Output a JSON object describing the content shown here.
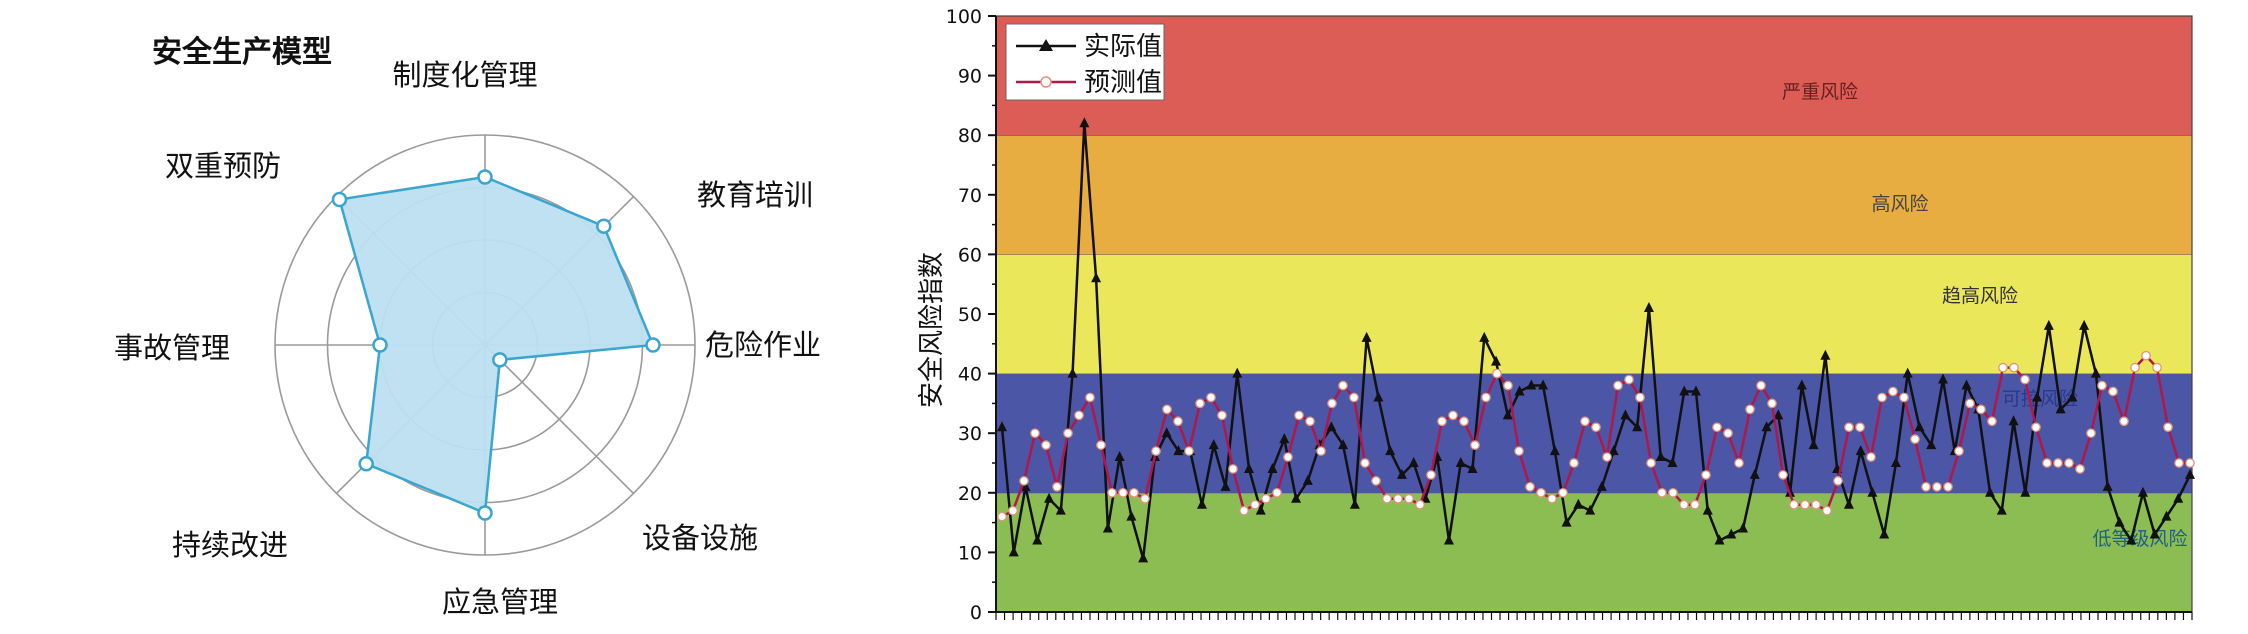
{
  "chart_data": [
    {
      "type": "radar",
      "title": "安全生产模型",
      "categories": [
        "制度化管理",
        "教育培训",
        "危险作业",
        "设备设施",
        "应急管理",
        "持续改进",
        "事故管理",
        "双重预防"
      ],
      "values": [
        0.8,
        0.8,
        0.8,
        0.1,
        0.8,
        0.8,
        0.5,
        0.98
      ],
      "colors": {
        "fill": "#bcdff0",
        "stroke": "#3aa6cf",
        "grid": "#9a9a9a"
      }
    },
    {
      "type": "line",
      "ylabel": "安全风险指数",
      "ylim": [
        0,
        100
      ],
      "yticks": [
        0,
        10,
        20,
        30,
        40,
        50,
        60,
        70,
        80,
        90,
        100
      ],
      "bands": [
        {
          "from": 0,
          "to": 20,
          "label": "低等级风险",
          "color": "#8cbd52",
          "labelColor": "#1f5f8a"
        },
        {
          "from": 20,
          "to": 40,
          "label": "可控风险",
          "color": "#4b56a6",
          "labelColor": "#2a3a8a"
        },
        {
          "from": 40,
          "to": 60,
          "label": "趋高风险",
          "color": "#ebe75a",
          "labelColor": "#333333"
        },
        {
          "from": 60,
          "to": 80,
          "label": "高风险",
          "color": "#e8ad41",
          "labelColor": "#444444"
        },
        {
          "from": 80,
          "to": 100,
          "label": "严重风险",
          "color": "#db5d55",
          "labelColor": "#6a1f1f"
        }
      ],
      "series": [
        {
          "name": "实际值",
          "color": "#111111",
          "values": [
            31,
            10,
            21,
            12,
            19,
            17,
            40,
            82,
            56,
            14,
            26,
            16,
            9,
            26,
            30,
            27,
            27,
            18,
            28,
            21,
            40,
            24,
            17,
            24,
            29,
            19,
            22,
            28,
            31,
            28,
            18,
            46,
            36,
            27,
            23,
            25,
            19,
            26,
            12,
            25,
            24,
            46,
            42,
            33,
            37,
            38,
            38,
            27,
            15,
            18,
            17,
            21,
            27,
            33,
            31,
            51,
            26,
            25,
            37,
            37,
            17,
            12,
            13,
            14,
            23,
            31,
            33,
            20,
            38,
            28,
            43,
            24,
            18,
            27,
            20,
            13,
            25,
            40,
            31,
            28,
            39,
            27,
            38,
            34,
            20,
            17,
            32,
            20,
            36,
            48,
            34,
            36,
            48,
            40,
            21,
            15,
            12,
            20,
            13,
            16,
            19,
            23
          ]
        },
        {
          "name": "预测值",
          "color": "#b0174a",
          "values": [
            16,
            17,
            22,
            30,
            28,
            21,
            30,
            33,
            36,
            28,
            20,
            20,
            20,
            19,
            27,
            34,
            32,
            27,
            35,
            36,
            33,
            24,
            17,
            18,
            19,
            20,
            26,
            33,
            32,
            27,
            35,
            38,
            36,
            25,
            22,
            19,
            19,
            19,
            18,
            23,
            32,
            33,
            32,
            28,
            36,
            40,
            38,
            27,
            21,
            20,
            19,
            20,
            25,
            32,
            31,
            26,
            38,
            39,
            36,
            25,
            20,
            20,
            18,
            18,
            23,
            31,
            30,
            25,
            34,
            38,
            35,
            23,
            18,
            18,
            18,
            17,
            22,
            31,
            31,
            26,
            36,
            37,
            36,
            29,
            21,
            21,
            21,
            27,
            35,
            34,
            32,
            41,
            41,
            39,
            31,
            25,
            25,
            25,
            24,
            30,
            38,
            37,
            32,
            41,
            43,
            41,
            31,
            25,
            25
          ]
        }
      ],
      "legend": "top-left"
    }
  ]
}
